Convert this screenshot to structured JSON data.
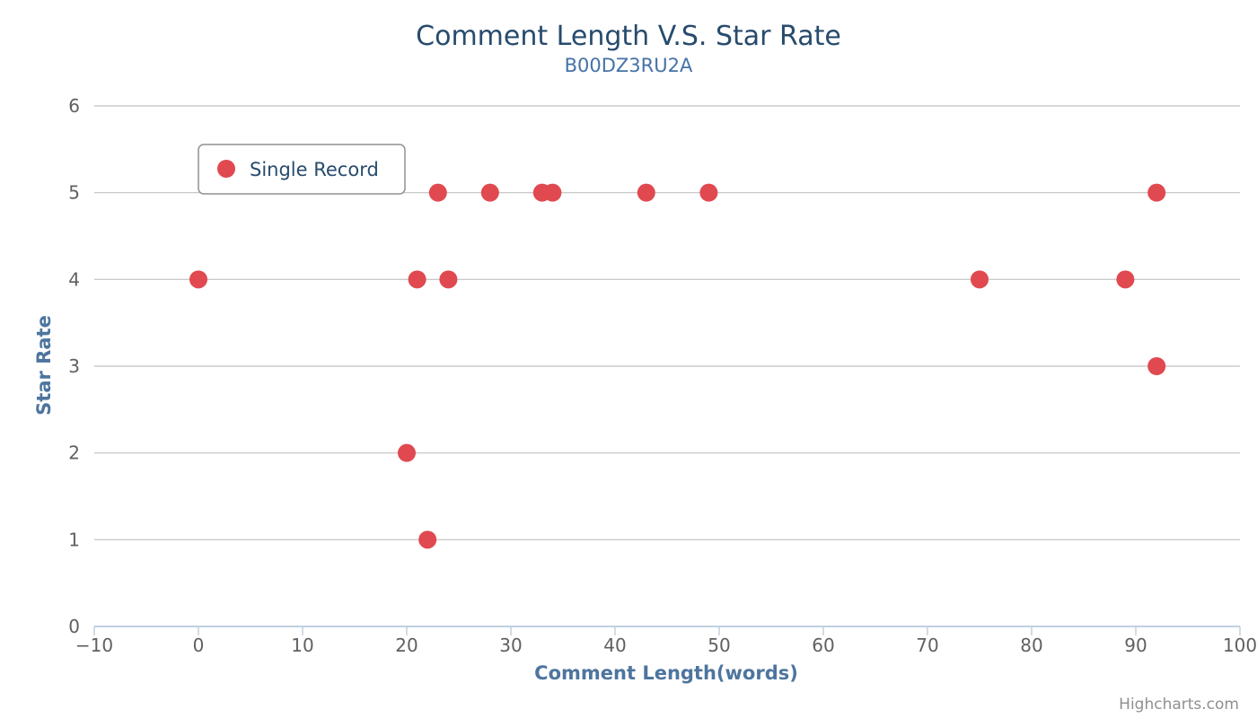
{
  "chart_data": {
    "type": "scatter",
    "title": "Comment Length V.S. Star Rate",
    "subtitle": "B00DZ3RU2A",
    "xlabel": "Comment Length(words)",
    "ylabel": "Star Rate",
    "xlim": [
      -10,
      100
    ],
    "ylim": [
      0,
      6
    ],
    "x_ticks": [
      -10,
      0,
      10,
      20,
      30,
      40,
      50,
      60,
      70,
      80,
      90,
      100
    ],
    "x_tick_labels": [
      "−10",
      "0",
      "10",
      "20",
      "30",
      "40",
      "50",
      "60",
      "70",
      "80",
      "90",
      "100"
    ],
    "y_ticks": [
      0,
      1,
      2,
      3,
      4,
      5,
      6
    ],
    "y_tick_labels": [
      "0",
      "1",
      "2",
      "3",
      "4",
      "5",
      "6"
    ],
    "grid": "horizontal",
    "legend_position": "top-left",
    "series": [
      {
        "name": "Single Record",
        "color": "#e0494f",
        "points": [
          {
            "x": 0,
            "y": 4
          },
          {
            "x": 20,
            "y": 2
          },
          {
            "x": 21,
            "y": 4
          },
          {
            "x": 22,
            "y": 1
          },
          {
            "x": 23,
            "y": 5
          },
          {
            "x": 24,
            "y": 4
          },
          {
            "x": 28,
            "y": 5
          },
          {
            "x": 33,
            "y": 5
          },
          {
            "x": 34,
            "y": 5
          },
          {
            "x": 43,
            "y": 5
          },
          {
            "x": 49,
            "y": 5
          },
          {
            "x": 75,
            "y": 4
          },
          {
            "x": 89,
            "y": 4
          },
          {
            "x": 92,
            "y": 5
          },
          {
            "x": 92,
            "y": 3
          }
        ]
      }
    ]
  },
  "credits": "Highcharts.com",
  "colors": {
    "grid": "#c0c0c0",
    "axis_line": "#c0d0e0",
    "legend_border": "#909090"
  }
}
